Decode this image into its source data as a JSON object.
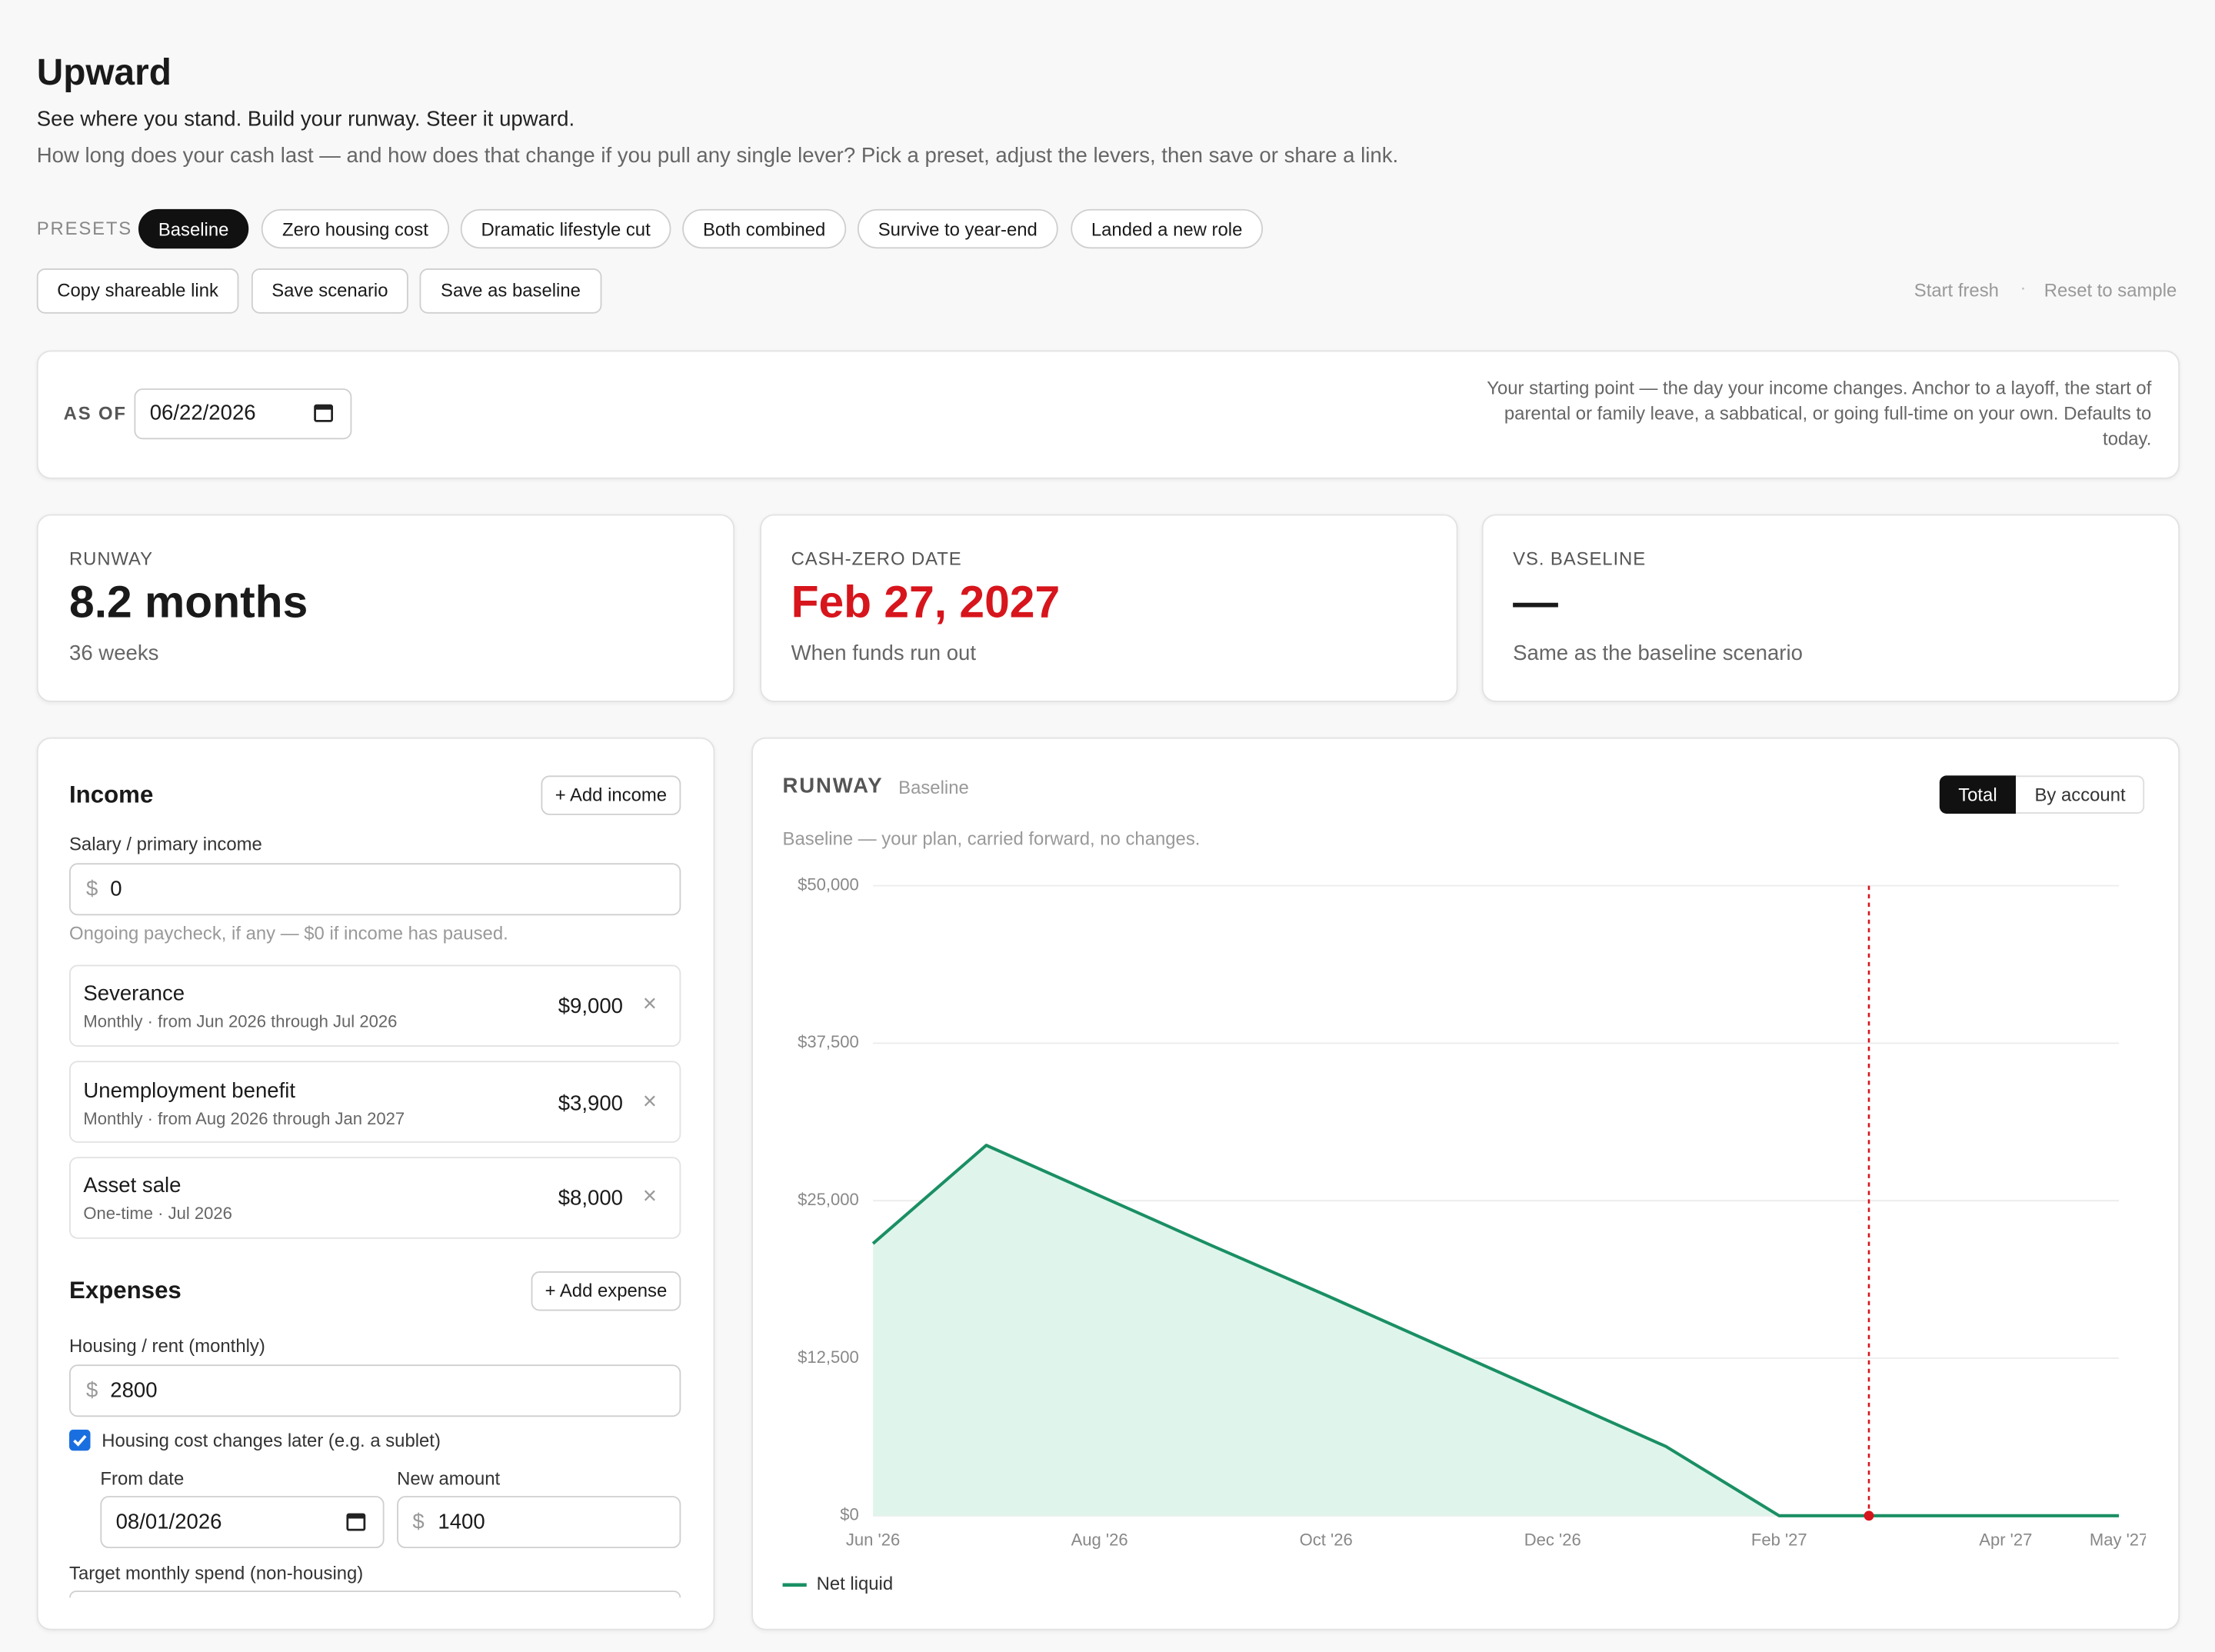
{
  "header": {
    "title": "Upward",
    "tagline": "See where you stand. Build your runway. Steer it upward.",
    "description": "How long does your cash last — and how does that change if you pull any single lever? Pick a preset, adjust the levers, then save or share a link."
  },
  "presets": {
    "label": "PRESETS",
    "items": [
      "Baseline",
      "Zero housing cost",
      "Dramatic lifestyle cut",
      "Both combined",
      "Survive to year-end",
      "Landed a new role"
    ]
  },
  "actions": [
    "Copy shareable link",
    "Save scenario",
    "Save as baseline"
  ],
  "links": [
    "Start fresh",
    "Reset to sample"
  ],
  "as_of": {
    "label": "AS OF",
    "value": "06/22/2026",
    "note": "Your starting point — the day your income changes. Anchor to a layoff, the start of parental or family leave, a sabbatical, or going full-time on your own. Defaults to today."
  },
  "stats": [
    {
      "label": "RUNWAY",
      "value": "8.2 months",
      "sub": "36 weeks"
    },
    {
      "label": "CASH-ZERO DATE",
      "value": "Feb 27, 2027",
      "sub": "When funds run out"
    },
    {
      "label": "VS. BASELINE",
      "value": "—",
      "sub": "Same as the baseline scenario"
    }
  ],
  "currency": "$",
  "income": {
    "title": "Income",
    "add": "+ Add income",
    "salary_label": "Salary / primary income",
    "salary_value": "0",
    "salary_hint": "Ongoing paycheck, if any — $0 if income has paused.",
    "items": [
      {
        "name": "Severance",
        "detail": "Monthly · from Jun 2026 through Jul 2026",
        "amount": "$9,000"
      },
      {
        "name": "Unemployment benefit",
        "detail": "Monthly · from Aug 2026 through Jan 2027",
        "amount": "$3,900"
      },
      {
        "name": "Asset sale",
        "detail": "One-time · Jul 2026",
        "amount": "$8,000"
      }
    ]
  },
  "expenses": {
    "title": "Expenses",
    "add": "+ Add expense",
    "housing_label": "Housing / rent (monthly)",
    "housing_value": "2800",
    "checkbox_label": "Housing cost changes later (e.g. a sublet)",
    "from_label": "From date",
    "from_value": "08/01/2026",
    "new_label": "New amount",
    "new_value": "1400",
    "target_label": "Target monthly spend (non-housing)"
  },
  "chart_panel": {
    "title": "RUNWAY",
    "badge": "Baseline",
    "toggle": [
      "Total",
      "By account"
    ],
    "caption": "Baseline — your plan, carried forward, no changes."
  },
  "chart_data": {
    "type": "line",
    "categories": [
      "Jun '26",
      null,
      "Aug '26",
      null,
      "Oct '26",
      null,
      "Dec '26",
      null,
      "Feb '27",
      null,
      "Apr '27",
      "May '27"
    ],
    "series": [
      {
        "name": "Net liquid",
        "color": "#1a8f64",
        "fill": "#dff5ec",
        "values": [
          21600,
          29400,
          25400,
          21400,
          17500,
          13500,
          9500,
          5500,
          0,
          0,
          0,
          0
        ]
      }
    ],
    "ylim": [
      0,
      50000
    ],
    "yticks": [
      {
        "value": 0,
        "label": "$0"
      },
      {
        "value": 12500,
        "label": "$12,500"
      },
      {
        "value": 25000,
        "label": "$25,000"
      },
      {
        "value": 37500,
        "label": "$37,500"
      },
      {
        "value": 50000,
        "label": "$50,000"
      }
    ],
    "grid": true
  }
}
